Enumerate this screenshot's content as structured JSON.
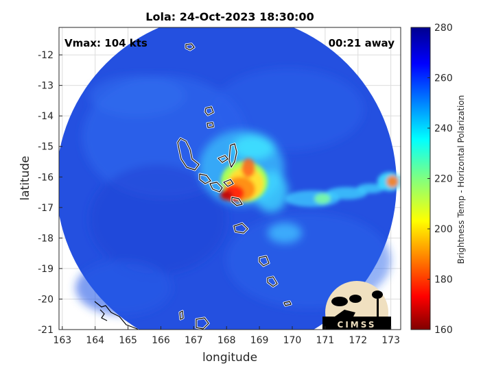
{
  "title": "Lola: 24-Oct-2023 18:30:00",
  "annotations": {
    "vmax": "Vmax: 104 kts",
    "time_away": "00:21 away"
  },
  "axes": {
    "xlabel": "longitude",
    "ylabel": "latitude",
    "xlim": [
      162.9,
      173.3
    ],
    "ylim": [
      -21,
      -11.1
    ],
    "xticks": [
      "163",
      "164",
      "165",
      "166",
      "167",
      "168",
      "169",
      "170",
      "171",
      "172",
      "173"
    ],
    "yticks": [
      "-12",
      "-13",
      "-14",
      "-15",
      "-16",
      "-17",
      "-18",
      "-19",
      "-20",
      "-21"
    ],
    "grid": true
  },
  "colorbar": {
    "label": "Brightness Temp - Horizontal Polarization",
    "ticks": [
      "280",
      "260",
      "240",
      "220",
      "200",
      "180",
      "160"
    ],
    "range": [
      160,
      280
    ],
    "colormap": "jet"
  },
  "chart_data": {
    "type": "heatmap",
    "variable": "Brightness Temp - Horizontal Polarization",
    "swath_center": [
      168.0,
      -16.3
    ],
    "swath_radius_deg": 5.1,
    "background_value": 262,
    "storm_center": [
      168.0,
      -16.7
    ],
    "features": [
      {
        "kind": "eye-wall core",
        "lon": 168.0,
        "lat": -16.7,
        "value": 175
      },
      {
        "kind": "inner rainband",
        "lon": 168.4,
        "lat": -16.3,
        "value": 200
      },
      {
        "kind": "outer ring",
        "lon": 168.6,
        "lat": -15.8,
        "value": 235
      },
      {
        "kind": "eastern rainband",
        "lon": 171.0,
        "lat": -16.9,
        "value": 230
      },
      {
        "kind": "east edge convection",
        "lon": 173.1,
        "lat": -16.1,
        "value": 205
      },
      {
        "kind": "southern band",
        "lon": 169.6,
        "lat": -17.9,
        "value": 238
      }
    ]
  },
  "logo": {
    "text": "CIMSS"
  }
}
